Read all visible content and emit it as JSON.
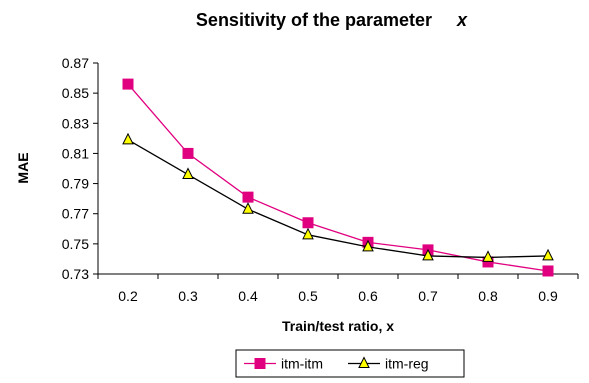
{
  "chart_data": {
    "type": "line",
    "title": "Sensitivity of the parameter",
    "title_variable": "x",
    "xlabel": "Train/test ratio, x",
    "ylabel": "MAE",
    "x": [
      0.2,
      0.3,
      0.4,
      0.5,
      0.6,
      0.7,
      0.8,
      0.9
    ],
    "x_tick_labels": [
      "0.2",
      "0.3",
      "0.4",
      "0.5",
      "0.6",
      "0.7",
      "0.8",
      "0.9"
    ],
    "y_ticks": [
      0.73,
      0.75,
      0.77,
      0.79,
      0.81,
      0.83,
      0.85,
      0.87
    ],
    "y_tick_labels": [
      "0.73",
      "0.75",
      "0.77",
      "0.79",
      "0.81",
      "0.83",
      "0.85",
      "0.87"
    ],
    "ylim": [
      0.73,
      0.87
    ],
    "grid": false,
    "legend_position": "bottom",
    "series": [
      {
        "name": "itm-itm",
        "values": [
          0.856,
          0.81,
          0.781,
          0.764,
          0.751,
          0.746,
          0.738,
          0.732
        ],
        "color": "#e0007f",
        "marker": "square",
        "marker_color": "#e0007f"
      },
      {
        "name": "itm-reg",
        "values": [
          0.819,
          0.796,
          0.773,
          0.756,
          0.748,
          0.742,
          0.741,
          0.742
        ],
        "color": "#000000",
        "marker": "triangle",
        "marker_color": "#ffff00"
      }
    ]
  }
}
